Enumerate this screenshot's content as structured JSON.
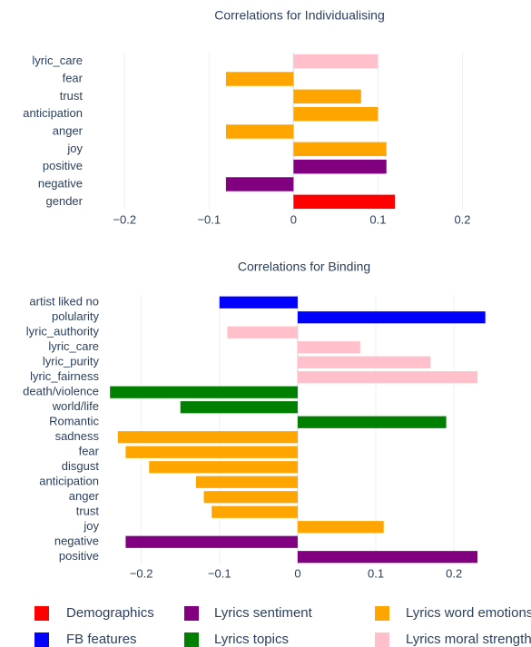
{
  "chart_data": [
    {
      "type": "bar",
      "title": "Correlations for Individualising",
      "categories": [
        "lyric_care",
        "fear",
        "trust",
        "anticipation",
        "anger",
        "joy",
        "positive",
        "negative",
        "gender"
      ],
      "values": [
        0.1,
        -0.08,
        0.08,
        0.1,
        -0.08,
        0.11,
        0.11,
        -0.08,
        0.12
      ],
      "colors": [
        "#ffc0cb",
        "#ffa500",
        "#ffa500",
        "#ffa500",
        "#ffa500",
        "#ffa500",
        "#800080",
        "#800080",
        "#ff0000"
      ],
      "xlim": [
        -0.24,
        0.265
      ],
      "xticks": [
        {
          "value": -0.2,
          "label": "−0.2"
        },
        {
          "value": -0.1,
          "label": "−0.1"
        },
        0,
        0.1,
        0.2
      ],
      "grid": true
    },
    {
      "type": "bar",
      "title": "Correlations for Binding",
      "categories": [
        "artist liked no",
        "polularity",
        "lyric_authority",
        "lyric_care",
        "lyric_purity",
        "lyric_fairness",
        "death/violence",
        "world/life",
        "Romantic",
        "sadness",
        "fear",
        "disgust",
        "anticipation",
        "anger",
        "trust",
        "joy",
        "negative",
        "positive"
      ],
      "values": [
        -0.1,
        0.24,
        -0.09,
        0.08,
        0.17,
        0.23,
        -0.24,
        -0.15,
        0.19,
        -0.23,
        -0.22,
        -0.19,
        -0.13,
        -0.12,
        -0.11,
        0.11,
        -0.22,
        0.23
      ],
      "colors": [
        "#0000ff",
        "#0000ff",
        "#ffc0cb",
        "#ffc0cb",
        "#ffc0cb",
        "#ffc0cb",
        "#008000",
        "#008000",
        "#008000",
        "#ffa500",
        "#ffa500",
        "#ffa500",
        "#ffa500",
        "#ffa500",
        "#ffa500",
        "#ffa500",
        "#800080",
        "#800080"
      ],
      "xlim": [
        -0.253,
        0.281
      ],
      "xticks": [
        {
          "value": -0.2,
          "label": "−0.2"
        },
        {
          "value": -0.1,
          "label": "−0.1"
        },
        0,
        0.1,
        0.2
      ],
      "grid": true
    }
  ],
  "legend": [
    {
      "name": "Demographics",
      "color": "#ff0000"
    },
    {
      "name": "Lyrics sentiment",
      "color": "#800080"
    },
    {
      "name": "Lyrics word emotions",
      "color": "#ffa500"
    },
    {
      "name": "FB features",
      "color": "#0000ff"
    },
    {
      "name": "Lyrics topics",
      "color": "#008000"
    },
    {
      "name": "Lyrics moral strength",
      "color": "#ffc0cb"
    }
  ]
}
